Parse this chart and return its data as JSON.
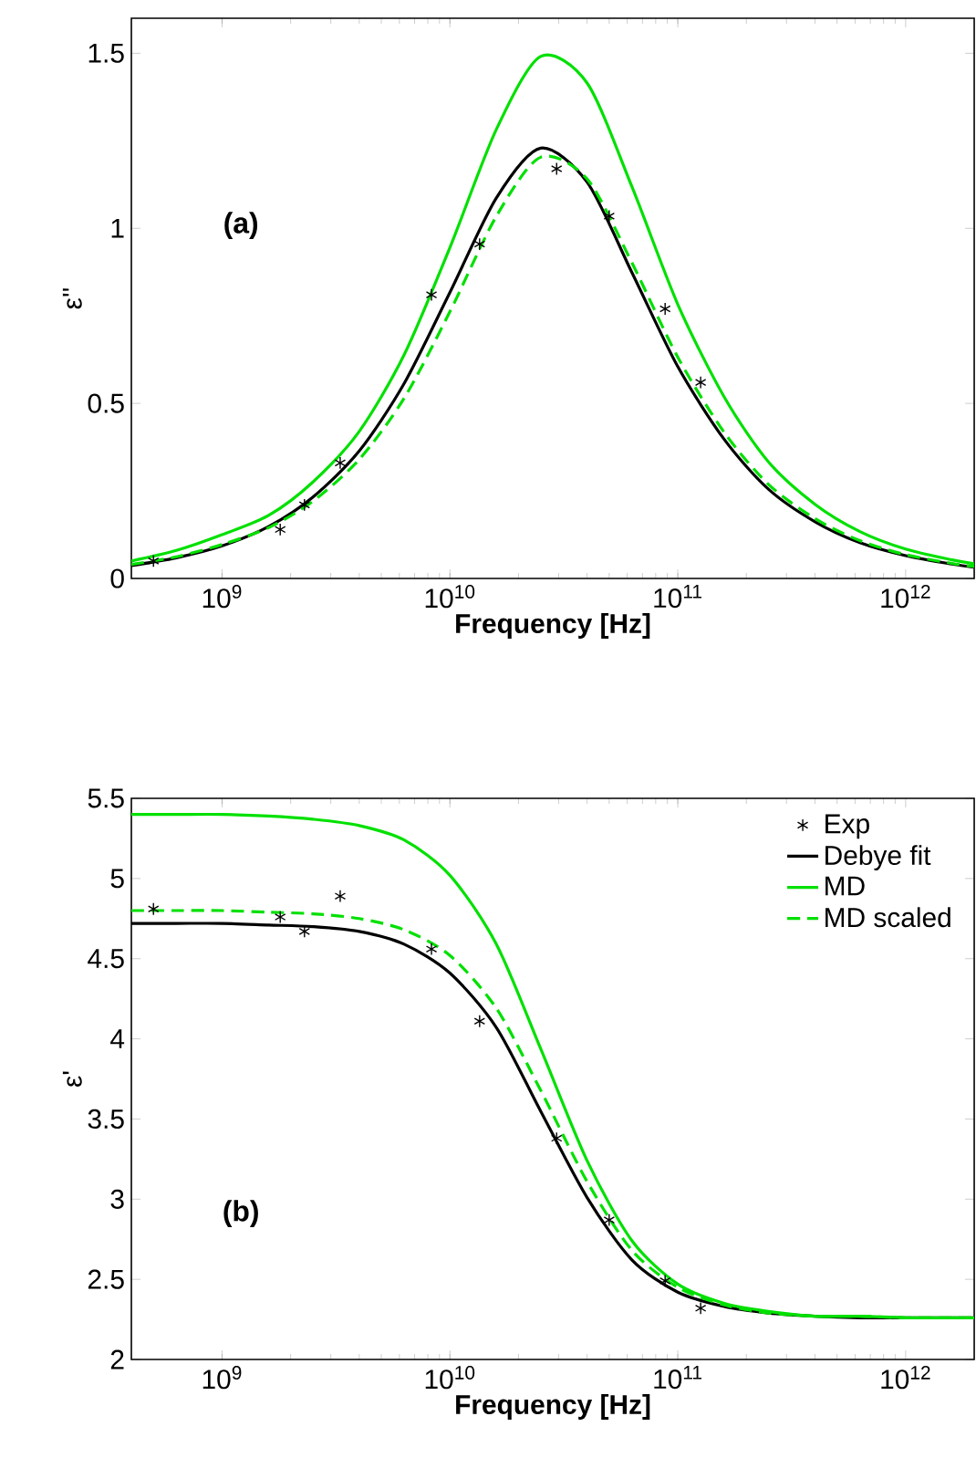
{
  "chart_data": [
    {
      "type": "line",
      "xlabel": "Frequency [Hz]",
      "ylabel": "ε''",
      "annotations": [
        "(a)"
      ],
      "log": "x",
      "legend": false,
      "grid": false,
      "xlim": [
        400000000.0,
        2000000000000.0
      ],
      "ylim": [
        0,
        1.6
      ],
      "xticks": [
        {
          "value": 1000000000.0,
          "label": "10$^{9}$"
        },
        {
          "value": 10000000000.0,
          "label": "10$^{10}$"
        },
        {
          "value": 100000000000.0,
          "label": "10$^{11}$"
        },
        {
          "value": 1000000000000.0,
          "label": "10$^{12}$"
        }
      ],
      "yticks": [
        0,
        0.5,
        1,
        1.5
      ],
      "x": [
        400000000.0,
        630000000.0,
        1000000000.0,
        1600000000.0,
        2500000000.0,
        4000000000.0,
        6300000000.0,
        10000000000.0,
        16000000000.0,
        25000000000.0,
        40000000000.0,
        63000000000.0,
        100000000000.0,
        160000000000.0,
        250000000000.0,
        400000000000.0,
        630000000000.0,
        1000000000000.0,
        1600000000000.0,
        2000000000000.0
      ],
      "series": [
        {
          "type": "scatter",
          "marker": "cross",
          "color": "#000000",
          "x": [
            500000000.0,
            1800000000.0,
            2300000000.0,
            3300000000.0,
            8300000000.0,
            13500000000.0,
            29400000000.0,
            50000000000.0,
            88000000000.0,
            126000000000.0
          ],
          "values": [
            0.05,
            0.14,
            0.21,
            0.33,
            0.81,
            0.955,
            1.17,
            1.035,
            0.77,
            0.56
          ]
        },
        {
          "color": "#000000",
          "line_style": "solid",
          "values": [
            0.037,
            0.059,
            0.093,
            0.148,
            0.232,
            0.364,
            0.557,
            0.817,
            1.087,
            1.229,
            1.132,
            0.873,
            0.605,
            0.397,
            0.255,
            0.162,
            0.102,
            0.065,
            0.041,
            0.032
          ]
        },
        {
          "color": "#00e000",
          "line_style": "solid",
          "values": [
            0.05,
            0.08,
            0.125,
            0.18,
            0.275,
            0.42,
            0.639,
            0.945,
            1.283,
            1.491,
            1.415,
            1.118,
            0.783,
            0.518,
            0.333,
            0.212,
            0.134,
            0.084,
            0.053,
            0.042
          ]
        },
        {
          "color": "#00e000",
          "line_style": "dashed",
          "values": [
            0.04,
            0.062,
            0.097,
            0.145,
            0.22,
            0.34,
            0.515,
            0.762,
            1.035,
            1.203,
            1.141,
            0.901,
            0.632,
            0.417,
            0.269,
            0.171,
            0.108,
            0.068,
            0.043,
            0.034
          ]
        }
      ]
    },
    {
      "type": "line",
      "xlabel": "Frequency [Hz]",
      "ylabel": "ε'",
      "annotations": [
        "(b)"
      ],
      "log": "x",
      "legend": "top right",
      "grid": false,
      "xlim": [
        400000000.0,
        2000000000000.0
      ],
      "ylim": [
        2,
        5.5
      ],
      "xticks": [
        {
          "value": 1000000000.0,
          "label": "10$^{9}$"
        },
        {
          "value": 10000000000.0,
          "label": "10$^{10}$"
        },
        {
          "value": 100000000000.0,
          "label": "10$^{11}$"
        },
        {
          "value": 1000000000000.0,
          "label": "10$^{12}$"
        }
      ],
      "yticks": [
        2,
        2.5,
        3,
        3.5,
        4,
        4.5,
        5,
        5.5
      ],
      "x": [
        400000000.0,
        630000000.0,
        1000000000.0,
        1600000000.0,
        2500000000.0,
        4000000000.0,
        6300000000.0,
        10000000000.0,
        16000000000.0,
        25000000000.0,
        40000000000.0,
        63000000000.0,
        100000000000.0,
        160000000000.0,
        250000000000.0,
        400000000000.0,
        630000000000.0,
        1000000000000.0,
        1600000000000.0,
        2000000000000.0
      ],
      "series": [
        {
          "name": "Exp",
          "type": "scatter",
          "marker": "cross",
          "color": "#000000",
          "x": [
            500000000.0,
            1800000000.0,
            2300000000.0,
            3300000000.0,
            8300000000.0,
            13500000000.0,
            29400000000.0,
            50000000000.0,
            88000000000.0,
            126000000000.0
          ],
          "values": [
            4.81,
            4.76,
            4.67,
            4.89,
            4.56,
            4.11,
            3.38,
            2.87,
            2.49,
            2.32
          ]
        },
        {
          "name": "Debye fit",
          "color": "#000000",
          "line_style": "solid",
          "values": [
            4.72,
            4.72,
            4.72,
            4.71,
            4.7,
            4.67,
            4.59,
            4.41,
            4.07,
            3.55,
            3.01,
            2.62,
            2.42,
            2.33,
            2.29,
            2.27,
            2.26,
            2.26,
            2.26,
            2.26
          ]
        },
        {
          "name": "MD",
          "color": "#00e000",
          "line_style": "solid",
          "values": [
            5.4,
            5.4,
            5.4,
            5.39,
            5.37,
            5.33,
            5.24,
            5.02,
            4.59,
            3.94,
            3.24,
            2.74,
            2.47,
            2.35,
            2.3,
            2.27,
            2.27,
            2.26,
            2.26,
            2.26
          ]
        },
        {
          "name": "MD scaled",
          "color": "#00e000",
          "line_style": "dashed",
          "values": [
            4.8,
            4.8,
            4.8,
            4.79,
            4.78,
            4.75,
            4.68,
            4.52,
            4.19,
            3.68,
            3.11,
            2.68,
            2.45,
            2.34,
            2.29,
            2.27,
            2.27,
            2.26,
            2.26,
            2.26
          ]
        }
      ]
    }
  ]
}
